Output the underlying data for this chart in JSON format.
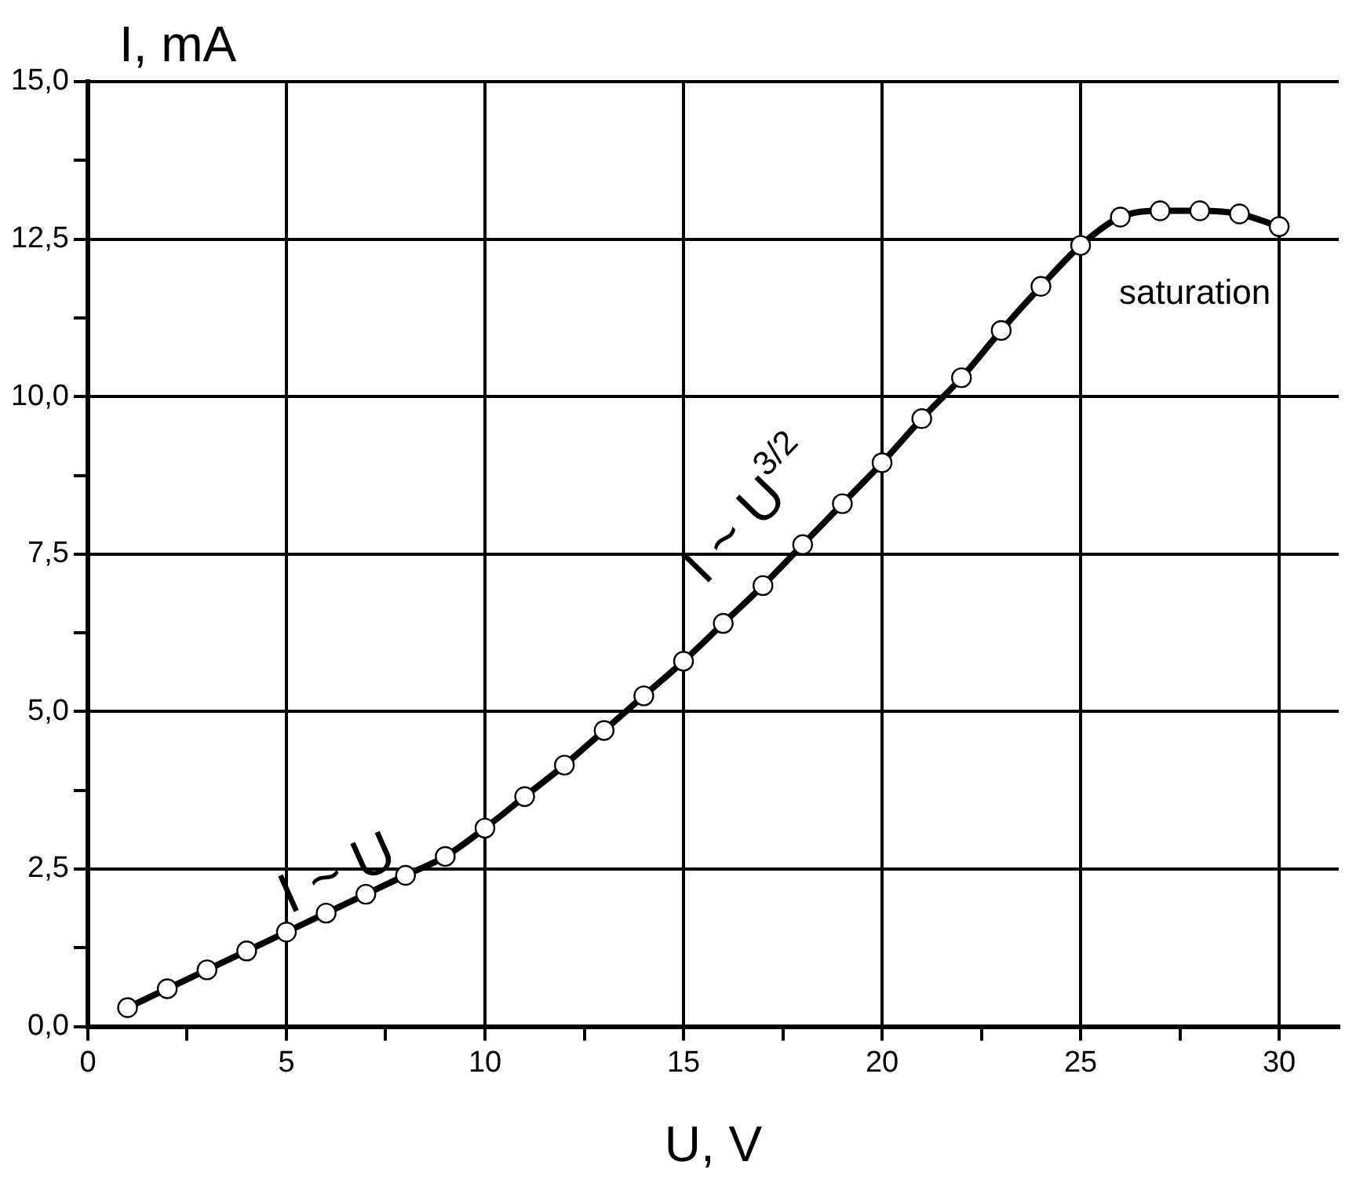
{
  "chart_data": {
    "type": "line",
    "xlabel": "U, V",
    "ylabel": "I, mA",
    "x": [
      1,
      2,
      3,
      4,
      5,
      6,
      7,
      8,
      9,
      10,
      11,
      12,
      13,
      14,
      15,
      16,
      17,
      18,
      19,
      20,
      21,
      22,
      23,
      24,
      25,
      26,
      27,
      28,
      29,
      30
    ],
    "series": [
      {
        "color": "#000000",
        "values": [
          0.3,
          0.6,
          0.9,
          1.2,
          1.5,
          1.8,
          2.1,
          2.4,
          2.7,
          3.15,
          3.65,
          4.15,
          4.7,
          5.25,
          5.8,
          6.4,
          7.0,
          7.65,
          8.3,
          8.95,
          9.65,
          10.3,
          11.05,
          11.75,
          12.4,
          12.85,
          12.95,
          12.95,
          12.9,
          12.7
        ]
      }
    ],
    "xlim": [
      0,
      31.5
    ],
    "ylim": [
      0,
      15
    ],
    "xticks": [
      0,
      {
        "value": 2.5,
        "label": null
      },
      5,
      {
        "value": 7.5,
        "label": null
      },
      10,
      {
        "value": 12.5,
        "label": null
      },
      15,
      {
        "value": 17.5,
        "label": null
      },
      20,
      {
        "value": 22.5,
        "label": null
      },
      25,
      {
        "value": 27.5,
        "label": null
      },
      30
    ],
    "yticks": [
      {
        "value": 0,
        "label": "0,0"
      },
      {
        "value": 1.25,
        "label": null
      },
      {
        "value": 2.5,
        "label": "2,5"
      },
      {
        "value": 3.75,
        "label": null
      },
      {
        "value": 5,
        "label": "5,0"
      },
      {
        "value": 6.25,
        "label": null
      },
      {
        "value": 7.5,
        "label": "7,5"
      },
      {
        "value": 8.75,
        "label": null
      },
      {
        "value": 10,
        "label": "10,0"
      },
      {
        "value": 11.25,
        "label": null
      },
      {
        "value": 12.5,
        "label": "12,5"
      },
      {
        "value": 13.75,
        "label": null
      },
      {
        "value": 15,
        "label": "15,0"
      }
    ],
    "annotations": [
      "I ~ U",
      "I ~ U$^{3/2}$",
      "saturation"
    ],
    "grid": true,
    "legend": false,
    "marker": "circle",
    "line_style": "solid"
  }
}
